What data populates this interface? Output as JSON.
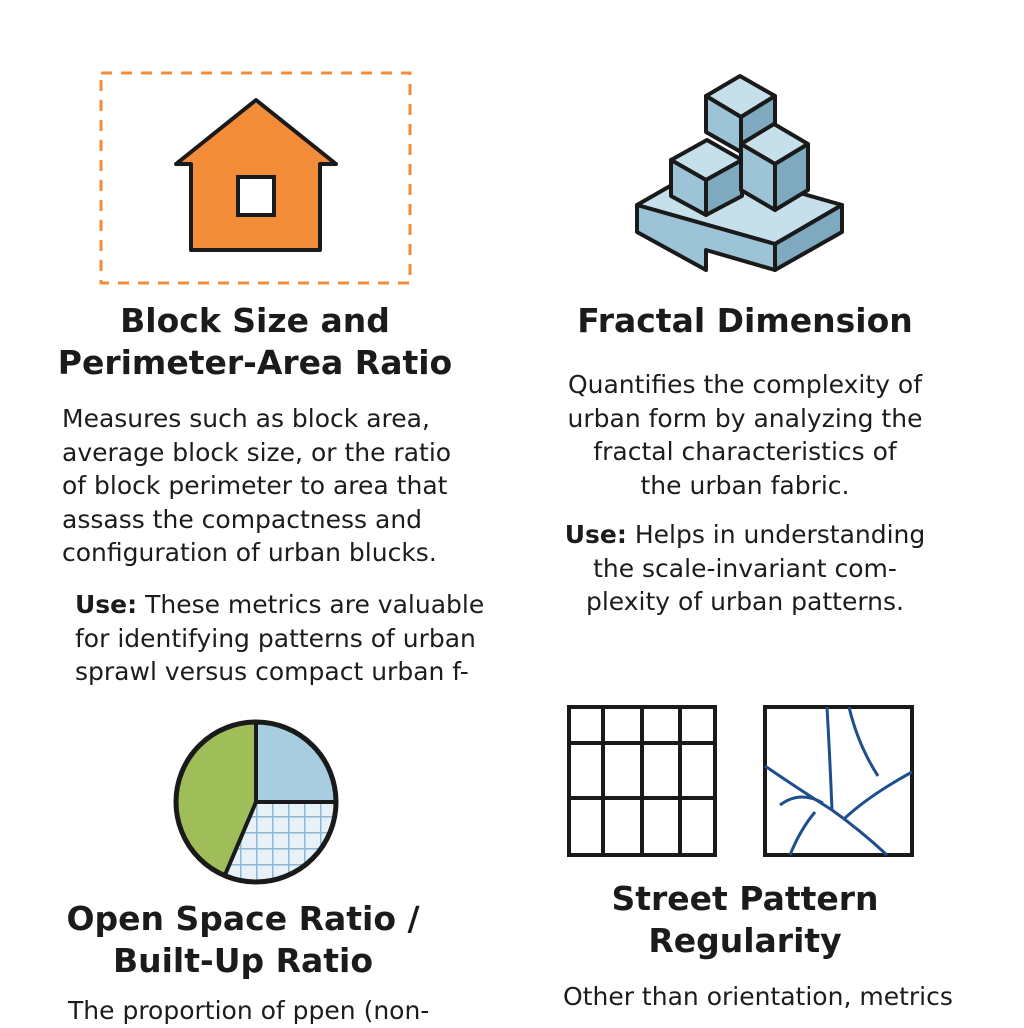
{
  "panels": {
    "block_size": {
      "icon": "house-icon",
      "title_lines": [
        "Block Size and",
        "Perimeter-Area Ratio"
      ],
      "desc_lines": [
        "Measures such as block area,",
        "average block size, or the ratio",
        "of block perimeter to area that",
        "assass the compactness and",
        "configuration of urban blucks."
      ],
      "use_label": "Use:",
      "use_lines": [
        " These metrics are valuable",
        "for identifying patterns of urban",
        "sprawl versus compact urban f-"
      ]
    },
    "fractal": {
      "icon": "isometric-cubes-icon",
      "title": "Fractal Dimension",
      "desc_lines": [
        "Quantifies the complexity of",
        "urban form by analyzing the",
        "fractal characteristics of",
        "the urban fabric."
      ],
      "use_label": "Use:",
      "use_lines": [
        " Helps in understanding",
        "the scale-invariant com-",
        "plexity of urban patterns."
      ]
    },
    "open_space": {
      "icon": "pie-chart-icon",
      "title_lines": [
        "Open Space Ratio /",
        "Built-Up Ratio"
      ],
      "desc_lines": [
        "The proportion of ppen (non-"
      ]
    },
    "street_pattern": {
      "icons": [
        "grid-streets-icon",
        "organic-streets-icon"
      ],
      "title_lines": [
        "Street Pattern",
        "Regularity"
      ],
      "desc_lines": [
        "Other than orientation, metrics"
      ]
    }
  },
  "colors": {
    "orange": "#F28C38",
    "dashed_border": "#F28C38",
    "cube_light": "#C5E0EA",
    "cube_mid": "#9CC3D6",
    "cube_dark": "#7FA9BF",
    "pie_green": "#9FBE5A",
    "pie_blue": "#A9CDE0",
    "street_blue": "#1F4E8C"
  }
}
